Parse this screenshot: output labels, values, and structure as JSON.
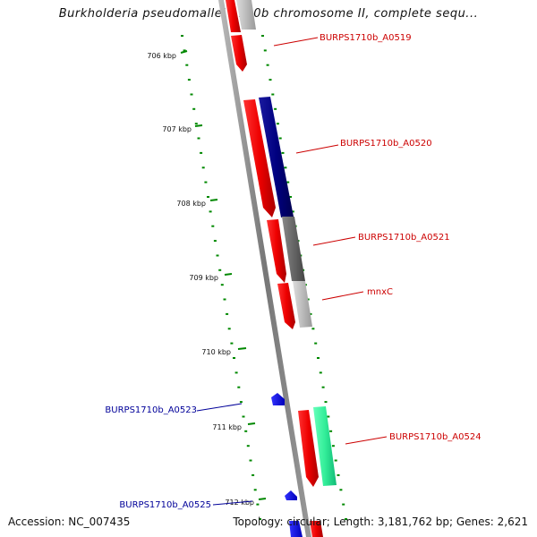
{
  "title": "Burkholderia pseudomallei 1710b chromosome II, complete sequ...",
  "scale_labels": [
    "706 kbp",
    "707 kbp",
    "708 kbp",
    "709 kbp",
    "710 kbp",
    "711 kbp",
    "712 kbp"
  ],
  "gene_labels": {
    "a0519": "BURPS1710b_A0519",
    "a0520": "BURPS1710b_A0520",
    "a0521": "BURPS1710b_A0521",
    "mnxc": "mnxC",
    "a0523": "BURPS1710b_A0523",
    "a0524": "BURPS1710b_A0524",
    "a0525": "BURPS1710b_A0525"
  },
  "footer": {
    "accession": "Accession: NC_007435",
    "summary": "Topology: circular; Length: 3,181,762 bp; Genes: 2,621"
  },
  "colors": {
    "cds": "#ee0000",
    "gene_blue": "#0000dd",
    "navy": "#000080",
    "gray": "#666666",
    "light_gray": "#bbbbbb",
    "green": "#33ee99",
    "tick_green": "#008800",
    "label_red": "#cc0000",
    "label_blue": "#000099"
  }
}
